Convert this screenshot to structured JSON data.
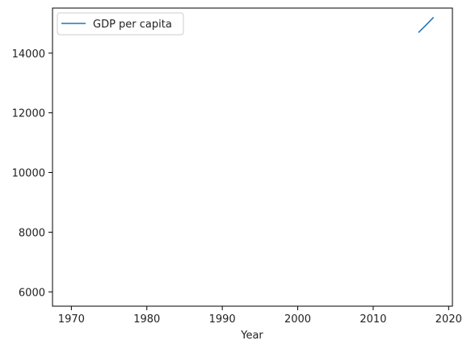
{
  "chart_data": {
    "type": "line",
    "title": "",
    "xlabel": "Year",
    "ylabel": "",
    "xlim": [
      1967.5,
      2020.5
    ],
    "ylim": [
      5520,
      15510
    ],
    "xticks": [
      1970,
      1980,
      1990,
      2000,
      2010,
      2020
    ],
    "xtick_labels": [
      "1970",
      "1980",
      "1990",
      "2000",
      "2010",
      "2020"
    ],
    "yticks": [
      6000,
      8000,
      10000,
      12000,
      14000
    ],
    "ytick_labels": [
      "6000",
      "8000",
      "10000",
      "12000",
      "14000"
    ],
    "grid": false,
    "legend": {
      "position": "top-left",
      "entries": [
        "GDP per capita"
      ]
    },
    "series": [
      {
        "name": "GDP per capita",
        "color": "#1f77b4",
        "x": [
          2016,
          2017,
          2018
        ],
        "y": [
          14690,
          14940,
          15200
        ]
      }
    ]
  }
}
